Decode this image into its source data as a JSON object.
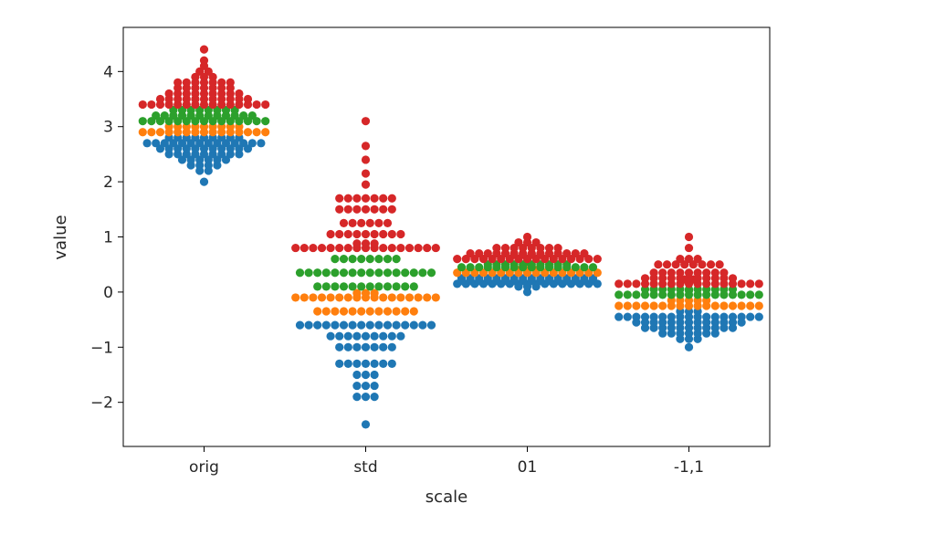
{
  "chart_data": {
    "type": "swarm",
    "xlabel": "scale",
    "ylabel": "value",
    "ylim": [
      -2.8,
      4.8
    ],
    "categories": [
      "orig",
      "std",
      "01",
      "-1,1"
    ],
    "yticks": [
      4,
      3,
      2,
      1,
      0,
      -1,
      -2
    ],
    "ytick_labels": [
      "4",
      "3",
      "2",
      "1",
      "0",
      "−1",
      "−2"
    ],
    "grid": false,
    "legend": "none",
    "colors": [
      "#1f77b4",
      "#ff7f0e",
      "#2ca02c",
      "#d62728"
    ],
    "groups": [
      {
        "category": "orig",
        "bands": [
          {
            "color": "#1f77b4",
            "values": [
              2.0,
              2.2,
              2.2,
              2.3,
              2.3,
              2.3,
              2.3,
              2.4,
              2.4,
              2.4,
              2.4,
              2.4,
              2.4,
              2.5,
              2.5,
              2.5,
              2.5,
              2.5,
              2.5,
              2.5,
              2.5,
              2.5,
              2.6,
              2.6,
              2.6,
              2.6,
              2.6,
              2.6,
              2.6,
              2.6,
              2.6,
              2.6,
              2.6,
              2.7,
              2.7,
              2.7,
              2.7,
              2.7,
              2.7,
              2.7,
              2.7,
              2.7,
              2.7,
              2.7,
              2.7,
              2.7,
              2.7,
              2.8,
              2.8,
              2.8,
              2.8,
              2.8,
              2.8,
              2.8,
              2.8,
              2.8
            ]
          },
          {
            "color": "#ff7f0e",
            "values": [
              2.9,
              2.9,
              2.9,
              2.9,
              2.9,
              2.9,
              2.9,
              2.9,
              2.9,
              2.9,
              2.9,
              2.9,
              2.9,
              2.9,
              2.9,
              3.0,
              3.0,
              3.0,
              3.0,
              3.0,
              3.0,
              3.0,
              3.0,
              3.0
            ]
          },
          {
            "color": "#2ca02c",
            "values": [
              3.1,
              3.1,
              3.1,
              3.1,
              3.1,
              3.1,
              3.1,
              3.1,
              3.1,
              3.1,
              3.1,
              3.1,
              3.1,
              3.1,
              3.1,
              3.2,
              3.2,
              3.2,
              3.2,
              3.2,
              3.2,
              3.2,
              3.2,
              3.2,
              3.2,
              3.2,
              3.2,
              3.3,
              3.3,
              3.3,
              3.3,
              3.3,
              3.3,
              3.3,
              3.3
            ]
          },
          {
            "color": "#d62728",
            "values": [
              3.4,
              3.4,
              3.4,
              3.4,
              3.4,
              3.4,
              3.4,
              3.4,
              3.4,
              3.4,
              3.4,
              3.4,
              3.4,
              3.4,
              3.4,
              3.5,
              3.5,
              3.5,
              3.5,
              3.5,
              3.5,
              3.5,
              3.5,
              3.5,
              3.5,
              3.5,
              3.6,
              3.6,
              3.6,
              3.6,
              3.6,
              3.6,
              3.6,
              3.6,
              3.6,
              3.7,
              3.7,
              3.7,
              3.7,
              3.7,
              3.7,
              3.7,
              3.8,
              3.8,
              3.8,
              3.8,
              3.8,
              3.8,
              3.8,
              3.9,
              3.9,
              3.9,
              4.0,
              4.0,
              4.1,
              4.2,
              4.4
            ]
          }
        ]
      },
      {
        "category": "std",
        "bands": [
          {
            "color": "#1f77b4",
            "values": [
              -2.4,
              -1.9,
              -1.9,
              -1.9,
              -1.7,
              -1.7,
              -1.7,
              -1.5,
              -1.5,
              -1.5,
              -1.3,
              -1.3,
              -1.3,
              -1.3,
              -1.3,
              -1.3,
              -1.3,
              -1.0,
              -1.0,
              -1.0,
              -1.0,
              -1.0,
              -1.0,
              -1.0,
              -0.8,
              -0.8,
              -0.8,
              -0.8,
              -0.8,
              -0.8,
              -0.8,
              -0.8,
              -0.8,
              -0.6,
              -0.6,
              -0.6,
              -0.6,
              -0.6,
              -0.6,
              -0.6,
              -0.6,
              -0.6,
              -0.6,
              -0.6,
              -0.6,
              -0.6,
              -0.6,
              -0.6,
              -0.6
            ]
          },
          {
            "color": "#ff7f0e",
            "values": [
              -0.35,
              -0.35,
              -0.35,
              -0.35,
              -0.35,
              -0.35,
              -0.35,
              -0.35,
              -0.35,
              -0.35,
              -0.35,
              -0.35,
              -0.1,
              -0.1,
              -0.1,
              -0.1,
              -0.1,
              -0.1,
              -0.1,
              -0.1,
              -0.1,
              -0.1,
              -0.1,
              -0.1,
              -0.1,
              -0.1,
              -0.1,
              -0.1,
              -0.1,
              -0.1,
              -0.1,
              -0.1
            ]
          },
          {
            "color": "#2ca02c",
            "values": [
              0.1,
              0.1,
              0.1,
              0.1,
              0.1,
              0.1,
              0.1,
              0.1,
              0.1,
              0.1,
              0.1,
              0.1,
              0.35,
              0.35,
              0.35,
              0.35,
              0.35,
              0.35,
              0.35,
              0.35,
              0.35,
              0.35,
              0.35,
              0.35,
              0.35,
              0.35,
              0.35,
              0.35,
              0.6,
              0.6,
              0.6,
              0.6,
              0.6,
              0.6,
              0.6,
              0.6
            ]
          },
          {
            "color": "#d62728",
            "values": [
              0.8,
              0.8,
              0.8,
              0.8,
              0.8,
              0.8,
              0.8,
              0.8,
              0.8,
              0.8,
              0.8,
              0.8,
              0.8,
              0.8,
              0.8,
              0.8,
              0.8,
              0.8,
              0.8,
              0.8,
              1.05,
              1.05,
              1.05,
              1.05,
              1.05,
              1.05,
              1.05,
              1.05,
              1.05,
              1.25,
              1.25,
              1.25,
              1.25,
              1.25,
              1.25,
              1.5,
              1.5,
              1.5,
              1.5,
              1.5,
              1.5,
              1.5,
              1.7,
              1.7,
              1.7,
              1.7,
              1.7,
              1.7,
              1.7,
              1.95,
              2.15,
              2.4,
              2.65,
              3.1
            ]
          }
        ]
      },
      {
        "category": "01",
        "bands": [
          {
            "color": "#1f77b4",
            "values": [
              0.0,
              0.1,
              0.1,
              0.1,
              0.15,
              0.15,
              0.15,
              0.15,
              0.15,
              0.15,
              0.15,
              0.15,
              0.15,
              0.15,
              0.15,
              0.15,
              0.15,
              0.15,
              0.15,
              0.15,
              0.15,
              0.2,
              0.2,
              0.2,
              0.2,
              0.2,
              0.2,
              0.2,
              0.2,
              0.2,
              0.2,
              0.2,
              0.2,
              0.2,
              0.2,
              0.2,
              0.2,
              0.25,
              0.25,
              0.25,
              0.25,
              0.25,
              0.25,
              0.25,
              0.25,
              0.25,
              0.25,
              0.25,
              0.25,
              0.25,
              0.25,
              0.25,
              0.25
            ]
          },
          {
            "color": "#ff7f0e",
            "values": [
              0.35,
              0.35,
              0.35,
              0.35,
              0.35,
              0.35,
              0.35,
              0.35,
              0.35,
              0.35,
              0.35,
              0.35,
              0.35,
              0.35,
              0.35,
              0.35,
              0.35,
              0.4,
              0.4,
              0.4
            ]
          },
          {
            "color": "#2ca02c",
            "values": [
              0.45,
              0.45,
              0.45,
              0.45,
              0.45,
              0.45,
              0.45,
              0.45,
              0.45,
              0.45,
              0.45,
              0.45,
              0.45,
              0.45,
              0.45,
              0.45,
              0.5,
              0.5,
              0.5,
              0.5,
              0.5,
              0.5,
              0.5,
              0.5,
              0.5,
              0.5,
              0.55
            ]
          },
          {
            "color": "#d62728",
            "values": [
              0.6,
              0.6,
              0.6,
              0.6,
              0.6,
              0.6,
              0.6,
              0.6,
              0.6,
              0.6,
              0.6,
              0.6,
              0.6,
              0.6,
              0.6,
              0.6,
              0.6,
              0.6,
              0.6,
              0.6,
              0.6,
              0.7,
              0.7,
              0.7,
              0.7,
              0.7,
              0.7,
              0.7,
              0.7,
              0.7,
              0.7,
              0.7,
              0.7,
              0.7,
              0.7,
              0.8,
              0.8,
              0.8,
              0.8,
              0.8,
              0.8,
              0.8,
              0.8,
              0.9,
              0.9,
              0.9,
              1.0
            ]
          }
        ]
      },
      {
        "category": "-1,1",
        "bands": [
          {
            "color": "#1f77b4",
            "values": [
              -1.0,
              -0.85,
              -0.85,
              -0.85,
              -0.75,
              -0.75,
              -0.75,
              -0.75,
              -0.75,
              -0.75,
              -0.75,
              -0.65,
              -0.65,
              -0.65,
              -0.65,
              -0.65,
              -0.65,
              -0.65,
              -0.65,
              -0.65,
              -0.65,
              -0.65,
              -0.55,
              -0.55,
              -0.55,
              -0.55,
              -0.55,
              -0.55,
              -0.55,
              -0.55,
              -0.55,
              -0.55,
              -0.55,
              -0.55,
              -0.55,
              -0.45,
              -0.45,
              -0.45,
              -0.45,
              -0.45,
              -0.45,
              -0.45,
              -0.45,
              -0.45,
              -0.45,
              -0.45,
              -0.45,
              -0.45,
              -0.45,
              -0.45,
              -0.45,
              -0.45,
              -0.35,
              -0.35,
              -0.35
            ]
          },
          {
            "color": "#ff7f0e",
            "values": [
              -0.25,
              -0.25,
              -0.25,
              -0.25,
              -0.25,
              -0.25,
              -0.25,
              -0.25,
              -0.25,
              -0.25,
              -0.25,
              -0.25,
              -0.25,
              -0.25,
              -0.25,
              -0.25,
              -0.25,
              -0.15,
              -0.15,
              -0.15,
              -0.15,
              -0.15
            ]
          },
          {
            "color": "#2ca02c",
            "values": [
              -0.05,
              -0.05,
              -0.05,
              -0.05,
              -0.05,
              -0.05,
              -0.05,
              -0.05,
              -0.05,
              -0.05,
              -0.05,
              -0.05,
              -0.05,
              -0.05,
              -0.05,
              -0.05,
              -0.05,
              -0.05,
              0.05,
              0.05,
              0.05,
              0.05,
              0.05,
              0.05,
              0.05,
              0.05,
              0.05,
              0.05,
              0.05
            ]
          },
          {
            "color": "#d62728",
            "values": [
              0.15,
              0.15,
              0.15,
              0.15,
              0.15,
              0.15,
              0.15,
              0.15,
              0.15,
              0.15,
              0.15,
              0.15,
              0.15,
              0.15,
              0.15,
              0.15,
              0.15,
              0.15,
              0.15,
              0.25,
              0.25,
              0.25,
              0.25,
              0.25,
              0.25,
              0.25,
              0.25,
              0.25,
              0.25,
              0.25,
              0.35,
              0.35,
              0.35,
              0.35,
              0.35,
              0.35,
              0.35,
              0.35,
              0.35,
              0.5,
              0.5,
              0.5,
              0.5,
              0.5,
              0.5,
              0.5,
              0.5,
              0.6,
              0.6,
              0.6,
              0.8,
              1.0
            ]
          }
        ]
      }
    ]
  }
}
